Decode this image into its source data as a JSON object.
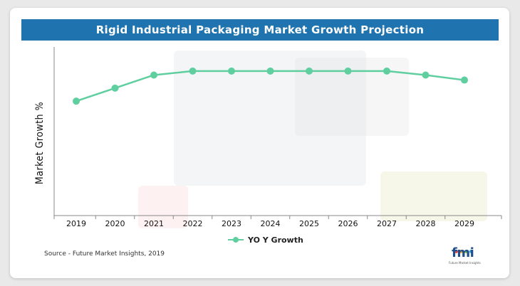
{
  "title": "Rigid Industrial Packaging Market Growth Projection",
  "source": "Source - Future Market Insights, 2019",
  "logo": {
    "text": "fmi",
    "subtext": "Future Market Insights"
  },
  "legend": {
    "label": "YO Y Growth"
  },
  "colors": {
    "title_bar": "#1f73ae",
    "series": "#5fcf9f",
    "axis": "#888888"
  },
  "chart_data": {
    "type": "line",
    "title": "Rigid Industrial Packaging Market Growth Projection",
    "xlabel": "",
    "ylabel": "Market Growth %",
    "categories": [
      "2019",
      "2020",
      "2021",
      "2022",
      "2023",
      "2024",
      "2025",
      "2026",
      "2027",
      "2028",
      "2029"
    ],
    "series": [
      {
        "name": "YO Y Growth",
        "values": [
          5.7,
          6.35,
          7.0,
          7.2,
          7.2,
          7.2,
          7.2,
          7.2,
          7.2,
          7.0,
          6.75
        ]
      }
    ],
    "ylim": [
      0,
      8.4
    ],
    "y_ticks_shown": false,
    "grid": false,
    "legend_position": "bottom-center"
  }
}
